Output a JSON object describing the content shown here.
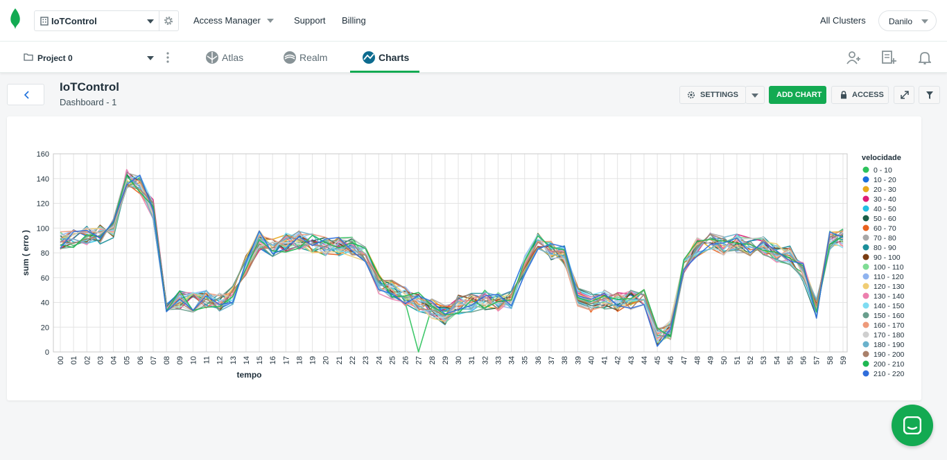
{
  "org": {
    "name": "IoTControl"
  },
  "topnav": {
    "access": "Access Manager",
    "support": "Support",
    "billing": "Billing",
    "clusters": "All Clusters",
    "user": "Danilo"
  },
  "project": {
    "name": "Project 0"
  },
  "tabs": {
    "atlas": "Atlas",
    "realm": "Realm",
    "charts": "Charts"
  },
  "dashboard": {
    "title": "IoTControl",
    "subtitle": "Dashboard - 1"
  },
  "toolbar": {
    "settings": "SETTINGS",
    "add_chart": "ADD CHART",
    "access": "ACCESS"
  },
  "colors": {
    "accent": "#13aa52",
    "brand": "#13aa52"
  },
  "chart_data": {
    "type": "line",
    "xlabel": "tempo",
    "ylabel": "sum ( erro )",
    "ylim": [
      0,
      160
    ],
    "yticks": [
      0,
      20,
      40,
      60,
      80,
      100,
      120,
      140,
      160
    ],
    "grid": true,
    "legend_title": "velocidade",
    "legend_position": "right",
    "categories": [
      "00",
      "01",
      "02",
      "03",
      "04",
      "05",
      "06",
      "07",
      "08",
      "09",
      "10",
      "11",
      "12",
      "13",
      "14",
      "15",
      "16",
      "17",
      "18",
      "19",
      "20",
      "21",
      "22",
      "23",
      "24",
      "25",
      "26",
      "27",
      "28",
      "29",
      "30",
      "31",
      "32",
      "33",
      "34",
      "35",
      "36",
      "37",
      "38",
      "39",
      "40",
      "41",
      "42",
      "43",
      "44",
      "45",
      "46",
      "47",
      "48",
      "49",
      "50",
      "51",
      "52",
      "53",
      "54",
      "55",
      "56",
      "57",
      "58",
      "59"
    ],
    "mean_profile": [
      90,
      92,
      94,
      95,
      100,
      140,
      135,
      115,
      40,
      42,
      40,
      42,
      40,
      45,
      70,
      90,
      85,
      88,
      90,
      88,
      85,
      85,
      85,
      80,
      55,
      50,
      45,
      40,
      35,
      30,
      38,
      40,
      42,
      40,
      42,
      70,
      88,
      82,
      78,
      45,
      40,
      42,
      40,
      42,
      44,
      12,
      18,
      70,
      85,
      88,
      85,
      88,
      85,
      85,
      80,
      78,
      65,
      35,
      90,
      92
    ],
    "series": [
      {
        "name": "0 - 10",
        "color": "#2cc25c"
      },
      {
        "name": "10 - 20",
        "color": "#1a6fdc"
      },
      {
        "name": "20 - 30",
        "color": "#e8a91c"
      },
      {
        "name": "30 - 40",
        "color": "#dd1e76"
      },
      {
        "name": "40 - 50",
        "color": "#22bfe2"
      },
      {
        "name": "50 - 60",
        "color": "#1a5e48"
      },
      {
        "name": "60 - 70",
        "color": "#e8611d"
      },
      {
        "name": "70 - 80",
        "color": "#a8a8a8"
      },
      {
        "name": "80 - 90",
        "color": "#1b8f9a"
      },
      {
        "name": "90 - 100",
        "color": "#7a3d12"
      },
      {
        "name": "100 - 110",
        "color": "#7fdc94"
      },
      {
        "name": "110 - 120",
        "color": "#8fb3ef"
      },
      {
        "name": "120 - 130",
        "color": "#f0cd74"
      },
      {
        "name": "130 - 140",
        "color": "#ec7fae"
      },
      {
        "name": "140 - 150",
        "color": "#7fdcf2"
      },
      {
        "name": "150 - 160",
        "color": "#699e8d"
      },
      {
        "name": "160 - 170",
        "color": "#ee9a7a"
      },
      {
        "name": "170 - 180",
        "color": "#cfcfcf"
      },
      {
        "name": "180 - 190",
        "color": "#6ab2cc"
      },
      {
        "name": "190 - 200",
        "color": "#a9806a"
      },
      {
        "name": "200 - 210",
        "color": "#1fb852"
      },
      {
        "name": "210 - 220",
        "color": "#2f6ddb"
      }
    ]
  }
}
